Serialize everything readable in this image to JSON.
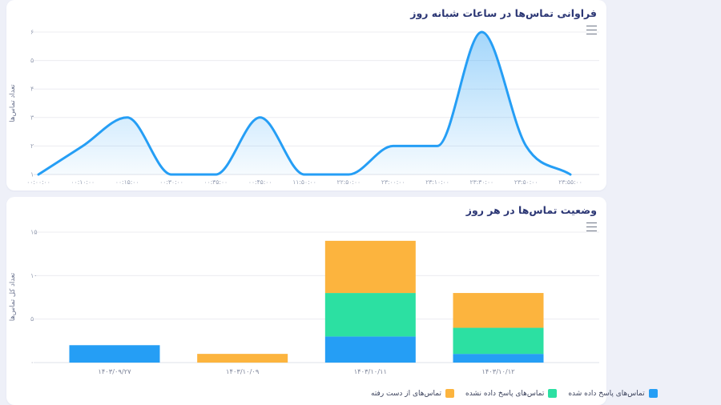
{
  "page": {
    "background_color": "#eef0f8",
    "card_background_color": "#ffffff",
    "title_color": "#2b3674",
    "axis_label_color": "#98a0b4",
    "grid_color": "#ececf1"
  },
  "cards": [
    {
      "title": "فراوانی تماس‌ها در ساعات شبانه روز",
      "menu_icon": "hamburger-menu-icon"
    },
    {
      "title": "وضعیت تماس‌ها در هر روز",
      "menu_icon": "hamburger-menu-icon"
    }
  ],
  "chart_data": [
    {
      "type": "area",
      "title": "فراوانی تماس‌ها در ساعات شبانه روز",
      "xlabel": "",
      "ylabel": "تعداد تماس‌ها",
      "categories": [
        "۰۰:۰۰:۰۰",
        "۰۰:۱۰:۰۰",
        "۰۰:۱۵:۰۰",
        "۰۰:۳۰:۰۰",
        "۰۰:۳۵:۰۰",
        "۰۰:۴۵:۰۰",
        "۱۱:۵۰:۰۰",
        "۲۲:۵۰:۰۰",
        "۲۳:۰۰:۰۰",
        "۲۳:۱۰:۰۰",
        "۲۳:۳۰:۰۰",
        "۲۳:۵۰:۰۰",
        "۲۳:۵۵:۰۰"
      ],
      "values": [
        1,
        2,
        3,
        1,
        1,
        3,
        1,
        1,
        2,
        2,
        6,
        2,
        1
      ],
      "ylim": [
        1,
        6
      ],
      "y_ticks": {
        "values": [
          1,
          2,
          3,
          4,
          5,
          6
        ],
        "labels": [
          "۱",
          "۲",
          "۳",
          "۴",
          "۵",
          "۶"
        ]
      },
      "line_color": "#259ef5",
      "area_fill": "gradient-blue",
      "grid": true,
      "legend": "none",
      "curve": "smooth-monotone"
    },
    {
      "type": "bar",
      "stacked": true,
      "title": "وضعیت تماس‌ها در هر روز",
      "xlabel": "",
      "ylabel": "تعداد کل تماس‌ها",
      "categories": [
        "۱۴۰۳/۰۹/۲۷",
        "۱۴۰۳/۱۰/۰۹",
        "۱۴۰۳/۱۰/۱۱",
        "۱۴۰۳/۱۰/۱۲"
      ],
      "series": [
        {
          "name": "تماس‌های پاسخ داده شده",
          "color": "#259ef5",
          "values": [
            2,
            0,
            3,
            1
          ]
        },
        {
          "name": "تماس‌های پاسخ داده نشده",
          "color": "#2ce0a2",
          "values": [
            0,
            0,
            5,
            3
          ]
        },
        {
          "name": "تماس‌های از دست رفته",
          "color": "#fcb43e",
          "values": [
            0,
            1,
            6,
            4
          ]
        }
      ],
      "ylim": [
        0,
        15
      ],
      "y_ticks": {
        "values": [
          0,
          5,
          10,
          15
        ],
        "labels": [
          "۰",
          "۵",
          "۱۰",
          "۱۵"
        ]
      },
      "grid": true,
      "legend_position": "bottom-left"
    }
  ]
}
